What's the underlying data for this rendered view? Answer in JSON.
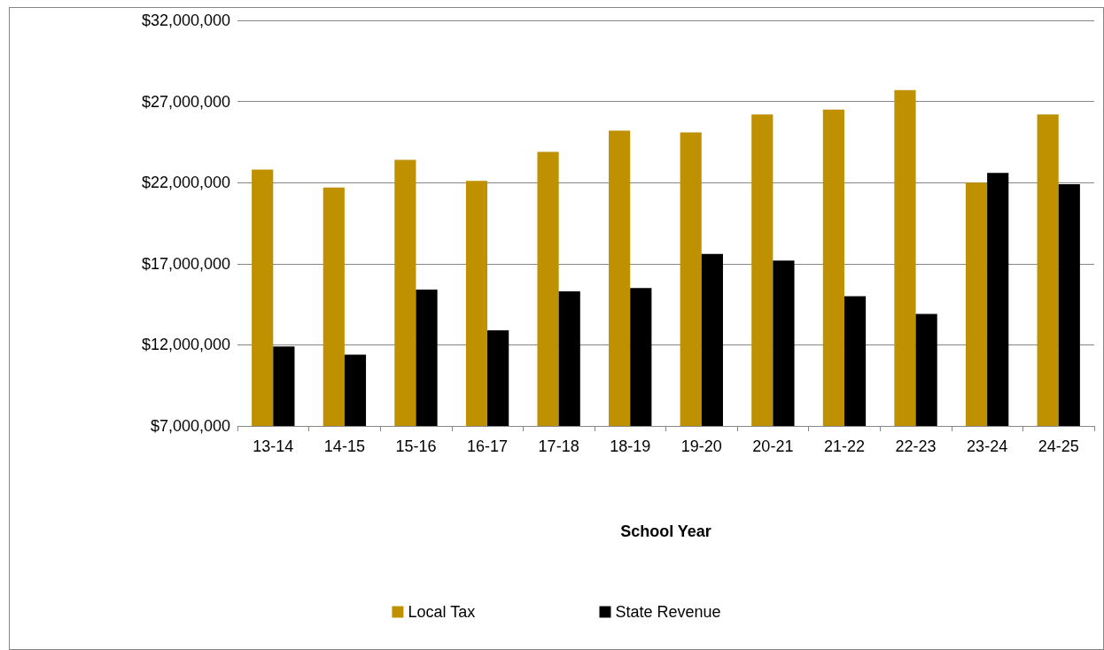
{
  "chart_data": {
    "type": "bar",
    "xlabel": "School Year",
    "categories": [
      "13-14",
      "14-15",
      "15-16",
      "16-17",
      "17-18",
      "18-19",
      "19-20",
      "20-21",
      "21-22",
      "22-23",
      "23-24",
      "24-25"
    ],
    "series": [
      {
        "name": "Local Tax",
        "color": "#bf9000",
        "values": [
          22800000,
          21700000,
          23400000,
          22100000,
          23900000,
          25200000,
          25100000,
          26200000,
          26500000,
          27700000,
          22000000,
          26200000
        ]
      },
      {
        "name": "State Revenue",
        "color": "#000000",
        "values": [
          11900000,
          11400000,
          15400000,
          12900000,
          15300000,
          15500000,
          17600000,
          17200000,
          15000000,
          13900000,
          22600000,
          21900000
        ]
      }
    ],
    "ylim": [
      7000000,
      32000000
    ],
    "yticks": [
      {
        "value": 7000000,
        "label": "$7,000,000"
      },
      {
        "value": 12000000,
        "label": "$12,000,000"
      },
      {
        "value": 17000000,
        "label": "$17,000,000"
      },
      {
        "value": 22000000,
        "label": "$22,000,000"
      },
      {
        "value": 27000000,
        "label": "$27,000,000"
      },
      {
        "value": 32000000,
        "label": "$32,000,000"
      }
    ],
    "grid": "y",
    "legend": "bottom"
  }
}
